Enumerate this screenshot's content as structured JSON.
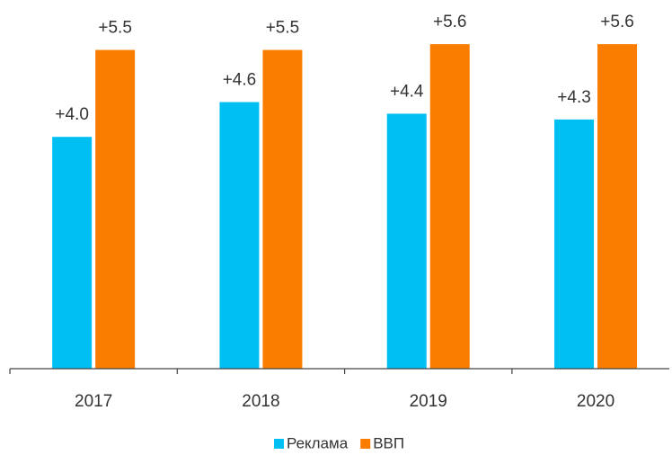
{
  "chart_data": {
    "type": "bar",
    "categories": [
      "2017",
      "2018",
      "2019",
      "2020"
    ],
    "series": [
      {
        "name": "Реклама",
        "color": "#00bff3",
        "values": [
          4.0,
          4.6,
          4.4,
          4.3
        ],
        "value_labels": [
          "+4.0",
          "+4.6",
          "+4.4",
          "+4.3"
        ]
      },
      {
        "name": "ВВП",
        "color": "#fb7d00",
        "values": [
          5.5,
          5.5,
          5.6,
          5.6
        ],
        "value_labels": [
          "+5.5",
          "+5.5",
          "+5.6",
          "+5.6"
        ]
      }
    ],
    "ylim": [
      0,
      6.3
    ],
    "legend": "bottom"
  }
}
